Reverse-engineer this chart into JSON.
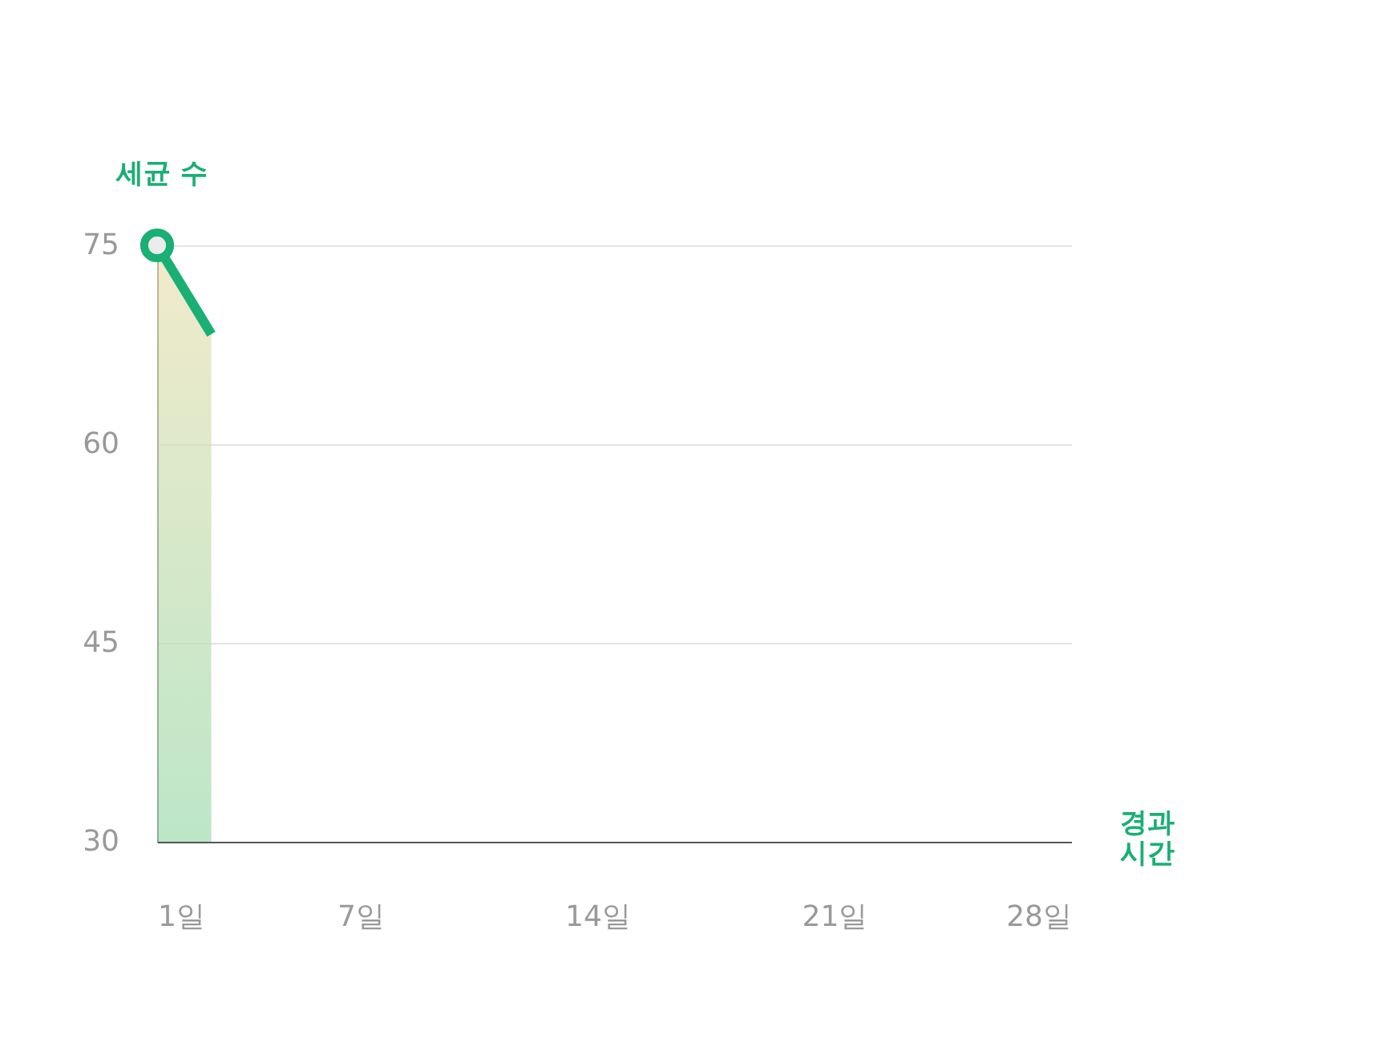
{
  "chart_data": {
    "type": "area",
    "ylabel": "세균 수",
    "xlabel": "경과\n시간",
    "x": [
      1,
      2.6
    ],
    "series": [
      {
        "color": "#1aaf74",
        "values": [
          75,
          68.3
        ]
      }
    ],
    "xlim": [
      1,
      28
    ],
    "xticks": [
      {
        "value": 1,
        "label": "1일"
      },
      {
        "value": 7,
        "label": "7일"
      },
      {
        "value": 14,
        "label": "14일"
      },
      {
        "value": 21,
        "label": "21일"
      },
      {
        "value": 28,
        "label": "28일"
      }
    ],
    "ylim": [
      30,
      75
    ],
    "yticks": [
      30,
      45,
      60,
      75
    ],
    "grid": "y",
    "marker": "circle",
    "line_style": "solid"
  }
}
